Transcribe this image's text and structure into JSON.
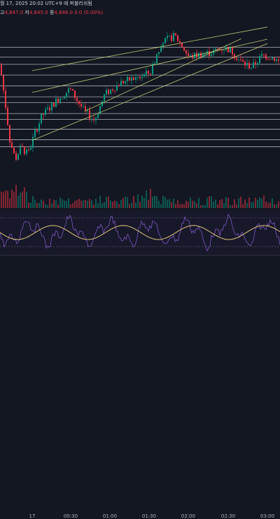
{
  "header": {
    "line1": "월 17, 2025 20:02 UTC+9 에 퍼블리쉬됨",
    "ohlc": [
      {
        "label": "고",
        "value": "4,847.0"
      },
      {
        "label": "저",
        "value": "4,845.0"
      },
      {
        "label": "종",
        "value": "4,846.0"
      }
    ],
    "change": "0.0 (0.00%)"
  },
  "colors": {
    "background": "#131722",
    "up": "#089981",
    "down": "#f23645",
    "early_candles": "#2962ff",
    "trendline": "#d4d97a",
    "hline": "#c8cbd4",
    "osc_bg": "#1e1a33",
    "osc_fast": "#7e57c2",
    "osc_slow": "#e0c77a"
  },
  "time_axis": {
    "labels": [
      "17",
      "00:30",
      "01:00",
      "01:30",
      "02:00",
      "02:30",
      "03:00"
    ]
  },
  "chart_data": {
    "type": "candlestick",
    "y_range": [
      4780,
      4850
    ],
    "x_categories": [
      "17",
      "00:30",
      "01:00",
      "01:30",
      "02:00",
      "02:30",
      "03:00"
    ],
    "horizontal_levels": [
      4836.3,
      4832.2,
      4829.2,
      4824.8,
      4820.3,
      4815.8,
      4813.4,
      4808.9,
      4806.5,
      4802.4,
      4798.1,
      4795.2
    ],
    "trendlines": [
      {
        "from": [
          "00:00",
          4826.6
        ],
        "to": [
          "03:00",
          4844.6
        ]
      },
      {
        "from": [
          "00:00",
          4817.6
        ],
        "to": [
          "03:00",
          4839.6
        ]
      },
      {
        "from": [
          "00:40",
          4809.8
        ],
        "to": [
          "02:40",
          4839.8
        ]
      },
      {
        "from": [
          "00:00",
          4797.8
        ],
        "to": [
          "03:00",
          4837.8
        ]
      }
    ],
    "oscillator": {
      "series": [
        "fast",
        "slow"
      ]
    }
  }
}
